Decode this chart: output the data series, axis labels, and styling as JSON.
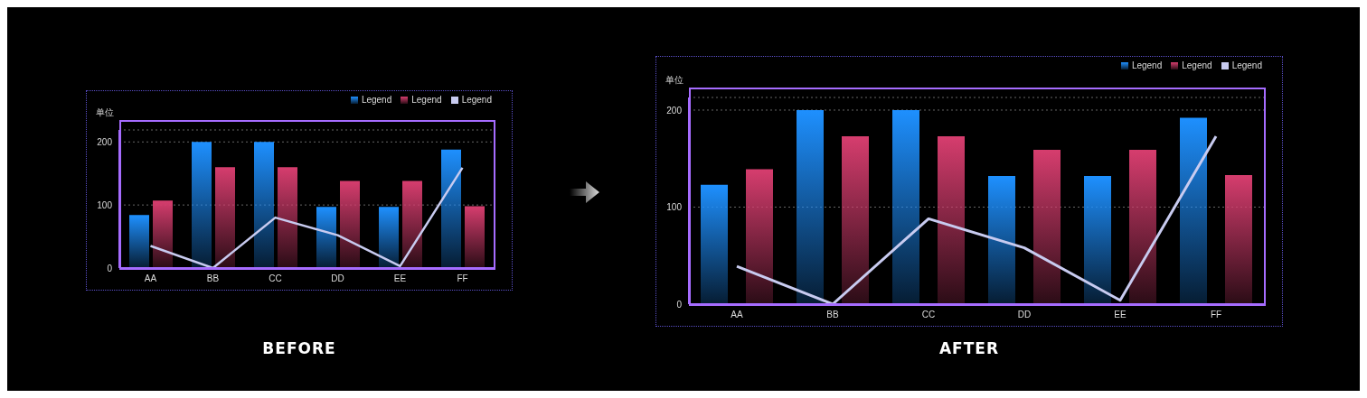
{
  "chart_data": [
    {
      "type": "bar",
      "title": "BEFORE",
      "ylabel": "单位",
      "categories": [
        "AA",
        "BB",
        "CC",
        "DD",
        "EE",
        "FF"
      ],
      "series": [
        {
          "name": "Legend",
          "color": "#1e90ff",
          "values": [
            84,
            200,
            200,
            97,
            97,
            188
          ]
        },
        {
          "name": "Legend",
          "color": "#d63d6e",
          "values": [
            107,
            160,
            160,
            138,
            138,
            98
          ]
        },
        {
          "name": "Legend",
          "type": "line",
          "color": "#c8cbf0",
          "values": [
            35,
            0,
            80,
            52,
            3,
            159
          ]
        }
      ],
      "ylim": [
        0,
        219
      ],
      "yticks": [
        0,
        100,
        200
      ],
      "grid": "y",
      "legend": "top right",
      "marker": "none"
    },
    {
      "type": "bar",
      "title": "AFTER",
      "ylabel": "单位",
      "categories": [
        "AA",
        "BB",
        "CC",
        "DD",
        "EE",
        "FF"
      ],
      "series": [
        {
          "name": "Legend",
          "color": "#1e90ff",
          "values": [
            123,
            200,
            200,
            132,
            132,
            192
          ]
        },
        {
          "name": "Legend",
          "color": "#d63d6e",
          "values": [
            139,
            173,
            173,
            159,
            159,
            133
          ]
        },
        {
          "name": "Legend",
          "type": "line",
          "color": "#c8cbf0",
          "values": [
            39,
            0,
            88,
            58,
            4,
            173
          ]
        }
      ],
      "ylim": [
        0,
        213
      ],
      "yticks": [
        0,
        100,
        200
      ],
      "grid": "y",
      "legend": "top right",
      "marker": "none"
    }
  ]
}
